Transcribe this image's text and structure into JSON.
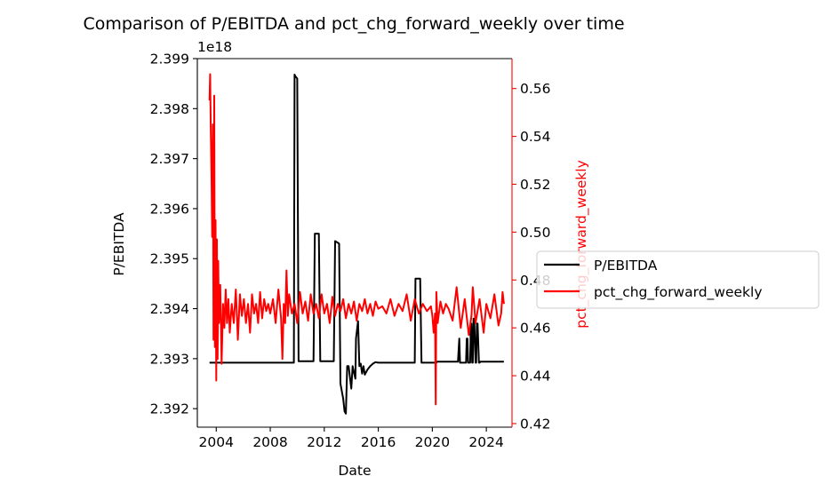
{
  "chart_data": {
    "type": "line",
    "title": "Comparison of P/EBITDA and pct_chg_forward_weekly over time",
    "xlabel": "Date",
    "ylabel_left": "P/EBITDA",
    "ylabel_right": "pct_chg_forward_weekly",
    "left_offset_text": "1e18",
    "xlim": [
      2002.6,
      2025.9
    ],
    "ylim_left": [
      2.39163,
      2.399
    ],
    "ylim_right": [
      0.4185,
      0.5725
    ],
    "x_ticks": [
      2004,
      2008,
      2012,
      2016,
      2020,
      2024
    ],
    "x_tick_labels": [
      "2004",
      "2008",
      "2012",
      "2016",
      "2020",
      "2024"
    ],
    "y_ticks_left": [
      2.392,
      2.393,
      2.394,
      2.395,
      2.396,
      2.397,
      2.398,
      2.399
    ],
    "y_tick_labels_left": [
      "2.392",
      "2.393",
      "2.394",
      "2.395",
      "2.396",
      "2.397",
      "2.398",
      "2.399"
    ],
    "y_ticks_right": [
      0.42,
      0.44,
      0.46,
      0.48,
      0.5,
      0.52,
      0.54,
      0.56
    ],
    "y_tick_labels_right": [
      "0.42",
      "0.44",
      "0.46",
      "0.48",
      "0.50",
      "0.52",
      "0.54",
      "0.56"
    ],
    "grid": false,
    "legend_position": "outside-right",
    "series": [
      {
        "name": "P/EBITDA",
        "axis": "left",
        "color": "#000000",
        "x": [
          2003.5,
          2009.75,
          2009.8,
          2009.85,
          2010.0,
          2010.1,
          2011.2,
          2011.3,
          2011.6,
          2011.7,
          2012.7,
          2012.8,
          2013.1,
          2013.2,
          2013.4,
          2013.5,
          2013.6,
          2013.7,
          2013.8,
          2014.0,
          2014.1,
          2014.3,
          2014.35,
          2014.5,
          2014.6,
          2014.7,
          2014.8,
          2014.9,
          2015.0,
          2015.2,
          2015.4,
          2015.6,
          2015.8,
          2016.0,
          2016.5,
          2017.0,
          2018.0,
          2018.7,
          2018.75,
          2019.1,
          2019.2,
          2020.3,
          2020.35,
          2021.9,
          2022.0,
          2022.05,
          2022.5,
          2022.55,
          2022.6,
          2022.65,
          2022.8,
          2022.85,
          2022.9,
          2022.95,
          2023.0,
          2023.05,
          2023.1,
          2023.2,
          2023.25,
          2023.3,
          2023.35,
          2023.45,
          2023.5,
          2023.55,
          2025.3
        ],
        "y": [
          2.39292,
          2.39292,
          2.39868,
          2.39865,
          2.3986,
          2.39295,
          2.39295,
          2.3955,
          2.3955,
          2.39295,
          2.39295,
          2.39535,
          2.3953,
          2.3925,
          2.3922,
          2.39195,
          2.3919,
          2.39285,
          2.39285,
          2.3924,
          2.39285,
          2.3926,
          2.3934,
          2.39375,
          2.39285,
          2.3929,
          2.3927,
          2.39285,
          2.39268,
          2.39278,
          2.39285,
          2.3929,
          2.39293,
          2.39292,
          2.39292,
          2.39292,
          2.39292,
          2.39292,
          2.3946,
          2.3946,
          2.39292,
          2.39292,
          2.39294,
          2.39294,
          2.3934,
          2.39292,
          2.39292,
          2.3934,
          2.3934,
          2.39292,
          2.39292,
          2.3937,
          2.3937,
          2.39292,
          2.39292,
          2.3938,
          2.3938,
          2.39292,
          2.39292,
          2.3937,
          2.3937,
          2.39292,
          2.39292,
          2.39294,
          2.39294
        ]
      },
      {
        "name": "pct_chg_forward_weekly",
        "axis": "right",
        "color": "#ff0000",
        "x": [
          2003.5,
          2003.55,
          2003.6,
          2003.65,
          2003.7,
          2003.75,
          2003.8,
          2003.85,
          2003.9,
          2003.95,
          2004.0,
          2004.05,
          2004.1,
          2004.15,
          2004.2,
          2004.3,
          2004.4,
          2004.5,
          2004.6,
          2004.7,
          2004.8,
          2004.9,
          2005.0,
          2005.15,
          2005.3,
          2005.45,
          2005.6,
          2005.75,
          2005.9,
          2006.05,
          2006.2,
          2006.35,
          2006.5,
          2006.65,
          2006.8,
          2006.95,
          2007.1,
          2007.25,
          2007.4,
          2007.55,
          2007.7,
          2007.85,
          2008.0,
          2008.2,
          2008.4,
          2008.6,
          2008.8,
          2008.9,
          2009.0,
          2009.1,
          2009.2,
          2009.3,
          2009.4,
          2009.6,
          2009.8,
          2010.0,
          2010.2,
          2010.4,
          2010.6,
          2010.8,
          2011.0,
          2011.2,
          2011.4,
          2011.6,
          2011.8,
          2012.0,
          2012.2,
          2012.4,
          2012.6,
          2012.8,
          2013.0,
          2013.2,
          2013.4,
          2013.6,
          2013.8,
          2014.0,
          2014.2,
          2014.4,
          2014.6,
          2014.8,
          2015.0,
          2015.2,
          2015.4,
          2015.6,
          2015.8,
          2016.0,
          2016.3,
          2016.6,
          2016.9,
          2017.2,
          2017.5,
          2017.8,
          2018.1,
          2018.4,
          2018.7,
          2019.0,
          2019.3,
          2019.6,
          2019.9,
          2020.0,
          2020.1,
          2020.2,
          2020.25,
          2020.3,
          2020.4,
          2020.6,
          2020.8,
          2021.0,
          2021.2,
          2021.5,
          2021.8,
          2022.1,
          2022.4,
          2022.7,
          2022.9,
          2023.0,
          2023.2,
          2023.5,
          2023.8,
          2024.0,
          2024.3,
          2024.6,
          2024.9,
          2025.1,
          2025.2,
          2025.3
        ],
        "y": [
          0.555,
          0.566,
          0.541,
          0.522,
          0.498,
          0.545,
          0.455,
          0.557,
          0.452,
          0.505,
          0.438,
          0.497,
          0.447,
          0.488,
          0.462,
          0.478,
          0.445,
          0.47,
          0.46,
          0.476,
          0.462,
          0.472,
          0.458,
          0.47,
          0.462,
          0.476,
          0.455,
          0.474,
          0.465,
          0.472,
          0.462,
          0.47,
          0.458,
          0.474,
          0.466,
          0.47,
          0.462,
          0.475,
          0.464,
          0.472,
          0.467,
          0.47,
          0.466,
          0.472,
          0.462,
          0.476,
          0.464,
          0.447,
          0.47,
          0.462,
          0.484,
          0.465,
          0.474,
          0.466,
          0.47,
          0.462,
          0.475,
          0.466,
          0.471,
          0.463,
          0.474,
          0.466,
          0.47,
          0.464,
          0.474,
          0.466,
          0.47,
          0.462,
          0.473,
          0.465,
          0.47,
          0.467,
          0.472,
          0.464,
          0.47,
          0.466,
          0.471,
          0.463,
          0.47,
          0.467,
          0.472,
          0.466,
          0.47,
          0.465,
          0.471,
          0.468,
          0.469,
          0.466,
          0.472,
          0.465,
          0.47,
          0.467,
          0.474,
          0.463,
          0.472,
          0.466,
          0.47,
          0.467,
          0.469,
          0.465,
          0.458,
          0.466,
          0.428,
          0.475,
          0.462,
          0.471,
          0.466,
          0.47,
          0.468,
          0.463,
          0.477,
          0.46,
          0.472,
          0.457,
          0.465,
          0.477,
          0.462,
          0.472,
          0.458,
          0.47,
          0.464,
          0.474,
          0.461,
          0.466,
          0.475,
          0.47
        ]
      }
    ]
  }
}
